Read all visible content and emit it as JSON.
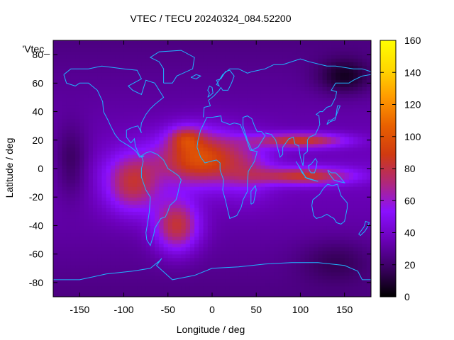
{
  "chart_data": {
    "type": "heatmap",
    "title": "VTEC / TECU 20240324_084.52200",
    "key_label": "'Vtec_",
    "xlabel": "Longitude / deg",
    "ylabel": "Latitude / deg",
    "xlim": [
      -180,
      180
    ],
    "ylim": [
      -90,
      90
    ],
    "x_ticks": [
      -150,
      -100,
      -50,
      0,
      50,
      100,
      150
    ],
    "y_ticks": [
      -80,
      -60,
      -40,
      -20,
      0,
      20,
      40,
      60,
      80
    ],
    "colorbar": {
      "range": [
        0,
        160
      ],
      "ticks": [
        0,
        20,
        40,
        60,
        80,
        100,
        120,
        140,
        160
      ],
      "colors": [
        "#000000",
        "#3a0060",
        "#6a00b8",
        "#8a10ff",
        "#b0287a",
        "#d03a10",
        "#e86000",
        "#ff9a00",
        "#ffd800",
        "#ffff00"
      ]
    },
    "grid": false,
    "overlay": "coastlines",
    "features": [
      {
        "lon": -90,
        "lat": -10,
        "sigma_lon": 30,
        "sigma_lat": 20,
        "amp": 45
      },
      {
        "lon": -15,
        "lat": 8,
        "sigma_lon": 45,
        "sigma_lat": 18,
        "amp": 62
      },
      {
        "lon": -30,
        "lat": 22,
        "sigma_lon": 18,
        "sigma_lat": 8,
        "amp": 30
      },
      {
        "lon": -40,
        "lat": -40,
        "sigma_lon": 25,
        "sigma_lat": 18,
        "amp": 50
      },
      {
        "lon": 100,
        "lat": 20,
        "sigma_lon": 50,
        "sigma_lat": 5,
        "amp": 52
      },
      {
        "lon": 105,
        "lat": -5,
        "sigma_lon": 55,
        "sigma_lat": 6,
        "amp": 48
      },
      {
        "lon": 40,
        "lat": 0,
        "sigma_lon": 30,
        "sigma_lat": 20,
        "amp": 20
      }
    ],
    "base_value": 38
  }
}
